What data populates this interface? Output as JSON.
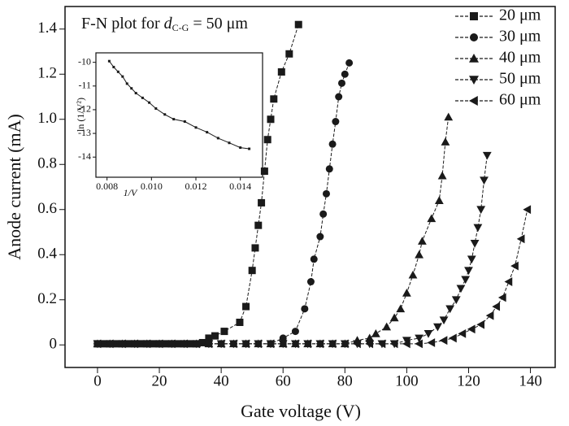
{
  "chart_data": {
    "type": "line",
    "xlabel": "Gate voltage (V)",
    "ylabel": "Anode current (mA)",
    "xlim": [
      -10.5,
      148
    ],
    "ylim": [
      -0.1,
      1.5
    ],
    "xticks": [
      0,
      20,
      40,
      60,
      80,
      100,
      120,
      140
    ],
    "yticks": [
      0,
      0.2,
      0.4,
      0.6,
      0.8,
      {
        "value": 1,
        "label": "1.0"
      },
      1.2,
      1.4
    ],
    "legend": "upper right",
    "annotation": {
      "text": "F-N plot for ",
      "variable": "d",
      "subscript": "C-G",
      "suffix": " = 50 μm"
    },
    "series": [
      {
        "name": "20 μm",
        "color": "#1a1a1a",
        "marker": "square",
        "x": [
          0,
          2,
          4,
          6,
          8,
          10,
          12,
          14,
          16,
          18,
          20,
          22,
          24,
          26,
          28,
          30,
          32,
          34,
          36,
          38,
          41,
          46,
          48,
          50,
          51,
          52,
          53,
          54,
          55,
          56,
          57,
          59.5,
          62,
          65
        ],
        "values": [
          0.005,
          0.005,
          0.005,
          0.005,
          0.005,
          0.005,
          0.005,
          0.005,
          0.005,
          0.005,
          0.005,
          0.005,
          0.005,
          0.005,
          0.005,
          0.005,
          0.005,
          0.01,
          0.03,
          0.04,
          0.06,
          0.1,
          0.17,
          0.33,
          0.43,
          0.53,
          0.63,
          0.77,
          0.91,
          1.0,
          1.09,
          1.21,
          1.29,
          1.42
        ]
      },
      {
        "name": "30 μm",
        "color": "#1a1a1a",
        "marker": "circle",
        "x": [
          0,
          4,
          8,
          12,
          16,
          20,
          24,
          28,
          32,
          36,
          40,
          44,
          48,
          52,
          56,
          60,
          64,
          67,
          69,
          70,
          72,
          73,
          74,
          75,
          76,
          77,
          78,
          79,
          80,
          81.4
        ],
        "values": [
          0.005,
          0.005,
          0.005,
          0.005,
          0.005,
          0.005,
          0.005,
          0.005,
          0.005,
          0.005,
          0.005,
          0.005,
          0.005,
          0.005,
          0.005,
          0.03,
          0.06,
          0.16,
          0.28,
          0.38,
          0.48,
          0.58,
          0.67,
          0.78,
          0.89,
          0.99,
          1.1,
          1.16,
          1.2,
          1.25
        ]
      },
      {
        "name": "40 μm",
        "color": "#1a1a1a",
        "marker": "triangle-up",
        "x": [
          0,
          4,
          8,
          12,
          16,
          20,
          24,
          28,
          32,
          36,
          40,
          44,
          48,
          52,
          56,
          60,
          64,
          68,
          72,
          76,
          80,
          84,
          88,
          90,
          93.5,
          96,
          98,
          100,
          102,
          104,
          105,
          108,
          110.5,
          111.5,
          112.5,
          113.5
        ],
        "values": [
          0.005,
          0.005,
          0.005,
          0.005,
          0.005,
          0.005,
          0.005,
          0.005,
          0.005,
          0.005,
          0.005,
          0.005,
          0.005,
          0.005,
          0.005,
          0.005,
          0.005,
          0.005,
          0.005,
          0.005,
          0.005,
          0.02,
          0.03,
          0.05,
          0.08,
          0.12,
          0.16,
          0.23,
          0.31,
          0.4,
          0.46,
          0.56,
          0.64,
          0.75,
          0.9,
          1.01
        ]
      },
      {
        "name": "50 μm",
        "color": "#1a1a1a",
        "marker": "triangle-down",
        "x": [
          0,
          4,
          8,
          12,
          16,
          20,
          24,
          28,
          32,
          36,
          40,
          44,
          48,
          52,
          56,
          60,
          64,
          68,
          72,
          76,
          80,
          84,
          88,
          92,
          96,
          100,
          104,
          107,
          110,
          112,
          114,
          116,
          117.5,
          119,
          120,
          121,
          122,
          123,
          124,
          125,
          126
        ],
        "values": [
          0.005,
          0.005,
          0.005,
          0.005,
          0.005,
          0.005,
          0.005,
          0.005,
          0.005,
          0.005,
          0.005,
          0.005,
          0.005,
          0.005,
          0.005,
          0.005,
          0.005,
          0.005,
          0.005,
          0.005,
          0.005,
          0.005,
          0.005,
          0.005,
          0.005,
          0.02,
          0.03,
          0.05,
          0.08,
          0.11,
          0.16,
          0.2,
          0.25,
          0.29,
          0.33,
          0.38,
          0.45,
          0.52,
          0.6,
          0.73,
          0.84
        ]
      },
      {
        "name": "60 μm",
        "color": "#1a1a1a",
        "marker": "triangle-left",
        "x": [
          0,
          4,
          8,
          12,
          16,
          20,
          24,
          28,
          32,
          36,
          40,
          44,
          48,
          52,
          56,
          60,
          64,
          68,
          72,
          76,
          80,
          84,
          88,
          92,
          96,
          100,
          104,
          108,
          112,
          115,
          118,
          121,
          124,
          127,
          129,
          131,
          133,
          135,
          137,
          139
        ],
        "values": [
          0.005,
          0.005,
          0.005,
          0.005,
          0.005,
          0.005,
          0.005,
          0.005,
          0.005,
          0.005,
          0.005,
          0.005,
          0.005,
          0.005,
          0.005,
          0.005,
          0.005,
          0.005,
          0.005,
          0.005,
          0.005,
          0.005,
          0.005,
          0.005,
          0.005,
          0.005,
          0.005,
          0.01,
          0.02,
          0.03,
          0.05,
          0.07,
          0.09,
          0.13,
          0.17,
          0.21,
          0.28,
          0.35,
          0.47,
          0.6
        ]
      }
    ],
    "inset": {
      "type": "line",
      "xlabel": "1/V",
      "ylabel": "ln (1/V²)",
      "xlim": [
        0.0075,
        0.015
      ],
      "ylim": [
        -14.85,
        -9.6
      ],
      "xticks": [
        0.008,
        {
          "value": 0.01,
          "label": "0.010"
        },
        0.012,
        0.014
      ],
      "yticks": [
        -10,
        -11,
        -12,
        -13,
        -14
      ],
      "color": "#1a1a1a",
      "x": [
        0.0081,
        0.0083,
        0.0085,
        0.0087,
        0.0089,
        0.0091,
        0.0093,
        0.0096,
        0.0099,
        0.0102,
        0.0106,
        0.011,
        0.0115,
        0.012,
        0.0125,
        0.013,
        0.0135,
        0.014,
        0.0144
      ],
      "values": [
        -9.95,
        -10.2,
        -10.4,
        -10.6,
        -10.9,
        -11.1,
        -11.3,
        -11.5,
        -11.7,
        -11.95,
        -12.2,
        -12.4,
        -12.5,
        -12.75,
        -12.95,
        -13.2,
        -13.4,
        -13.6,
        -13.65
      ]
    }
  }
}
